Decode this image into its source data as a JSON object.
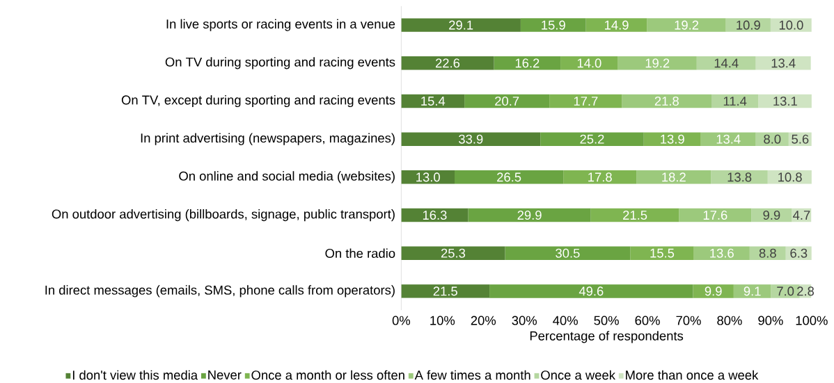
{
  "chart_data": {
    "type": "bar",
    "orientation": "horizontal",
    "stacked": true,
    "categories": [
      "In live sports or racing events in a venue",
      "On TV during sporting and racing events",
      "On TV, except during sporting and racing events",
      "In print advertising (newspapers, magazines)",
      "On online and social media (websites)",
      "On outdoor advertising (billboards, signage, public transport)",
      "On the radio",
      "In direct messages (emails, SMS, phone calls from operators)"
    ],
    "series": [
      {
        "name": "I don't view this media",
        "color": "#548235",
        "values": [
          29.1,
          22.6,
          15.4,
          33.9,
          13.0,
          16.3,
          25.3,
          21.5
        ],
        "value_labels": [
          "29.1",
          "22.6",
          "15.4",
          "33.9",
          "13.0",
          "16.3",
          "25.3",
          "21.5"
        ]
      },
      {
        "name": "Never",
        "color": "#6aa442",
        "values": [
          15.9,
          16.2,
          20.7,
          25.2,
          26.5,
          29.9,
          30.5,
          49.6
        ],
        "value_labels": [
          "15.9",
          "16.2",
          "20.7",
          "25.2",
          "26.5",
          "29.9",
          "30.5",
          "49.6"
        ]
      },
      {
        "name": "Once a month or less often",
        "color": "#7fb551",
        "values": [
          14.9,
          14.0,
          17.7,
          13.9,
          17.8,
          21.5,
          15.5,
          9.9
        ],
        "value_labels": [
          "14.9",
          "14.0",
          "17.7",
          "13.9",
          "17.8",
          "21.5",
          "15.5",
          "9.9"
        ]
      },
      {
        "name": "A few times a month",
        "color": "#9cc97c",
        "values": [
          19.2,
          19.2,
          21.8,
          13.4,
          18.2,
          17.6,
          13.6,
          9.1
        ],
        "value_labels": [
          "19.2",
          "19.2",
          "21.8",
          "13.4",
          "18.2",
          "17.6",
          "13.6",
          "9.1"
        ]
      },
      {
        "name": "Once a week",
        "color": "#b5d7a0",
        "values": [
          10.9,
          14.4,
          11.4,
          8.0,
          13.8,
          9.9,
          8.8,
          7.0
        ],
        "value_labels": [
          "10.9",
          "14.4",
          "11.4",
          "8.0",
          "13.8",
          "9.9",
          "8.8",
          "7.0"
        ]
      },
      {
        "name": "More than once a week",
        "color": "#cfe4c2",
        "values": [
          10.0,
          13.4,
          13.1,
          5.6,
          10.8,
          4.7,
          6.3,
          2.8
        ],
        "value_labels": [
          "10.0",
          "13.4",
          "13.1",
          "5.6",
          "10.8",
          "4.7",
          "6.3",
          "2.8"
        ]
      }
    ],
    "xlim": [
      0,
      100
    ],
    "xticks": [
      {
        "value": 0,
        "label": "0%"
      },
      {
        "value": 10,
        "label": "10%"
      },
      {
        "value": 20,
        "label": "20%"
      },
      {
        "value": 30,
        "label": "30%"
      },
      {
        "value": 40,
        "label": "40%"
      },
      {
        "value": 50,
        "label": "50%"
      },
      {
        "value": 60,
        "label": "60%"
      },
      {
        "value": 70,
        "label": "70%"
      },
      {
        "value": 80,
        "label": "80%"
      },
      {
        "value": 90,
        "label": "90%"
      },
      {
        "value": 100,
        "label": "100%"
      }
    ],
    "xlabel": "Percentage of respondents",
    "legend": "bottom",
    "grid": false
  }
}
